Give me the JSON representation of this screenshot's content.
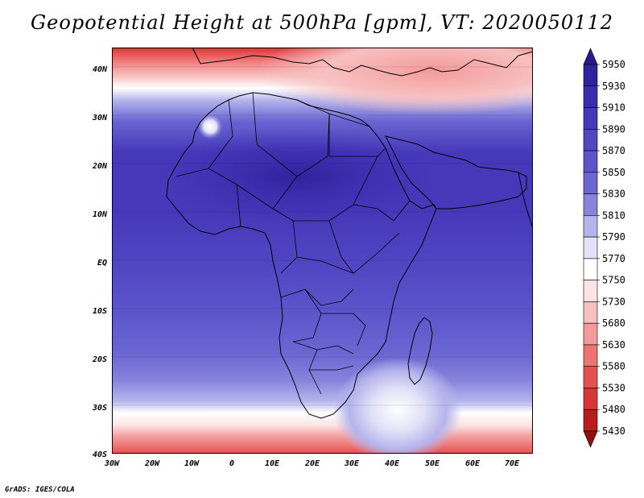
{
  "title": "Geopotential Height at 500hPa [gpm], VT: 2020050112",
  "credit": "GrADS: IGES/COLA",
  "map": {
    "lat_labels": [
      "40N",
      "30N",
      "20N",
      "10N",
      "EQ",
      "10S",
      "20S",
      "30S",
      "40S"
    ],
    "lon_labels": [
      "30W",
      "20W",
      "10W",
      "0",
      "10E",
      "20E",
      "30E",
      "40E",
      "50E",
      "60E",
      "70E"
    ]
  },
  "colorbar": {
    "levels": [
      "5950",
      "5930",
      "5910",
      "5890",
      "5870",
      "5850",
      "5830",
      "5810",
      "5790",
      "5770",
      "5750",
      "5730",
      "5680",
      "5630",
      "5580",
      "5530",
      "5480",
      "5430"
    ],
    "colors": [
      "#2a1a8c",
      "#30229c",
      "#3b2cae",
      "#4538b9",
      "#5147c3",
      "#5b55ca",
      "#6a66d2",
      "#8784dc",
      "#b5b4ec",
      "#e2e2f8",
      "#ffffff",
      "#fde3e3",
      "#f8c0c0",
      "#f49a9a",
      "#ef7373",
      "#e65050",
      "#d83535",
      "#b91c1c",
      "#8f1010"
    ]
  }
}
